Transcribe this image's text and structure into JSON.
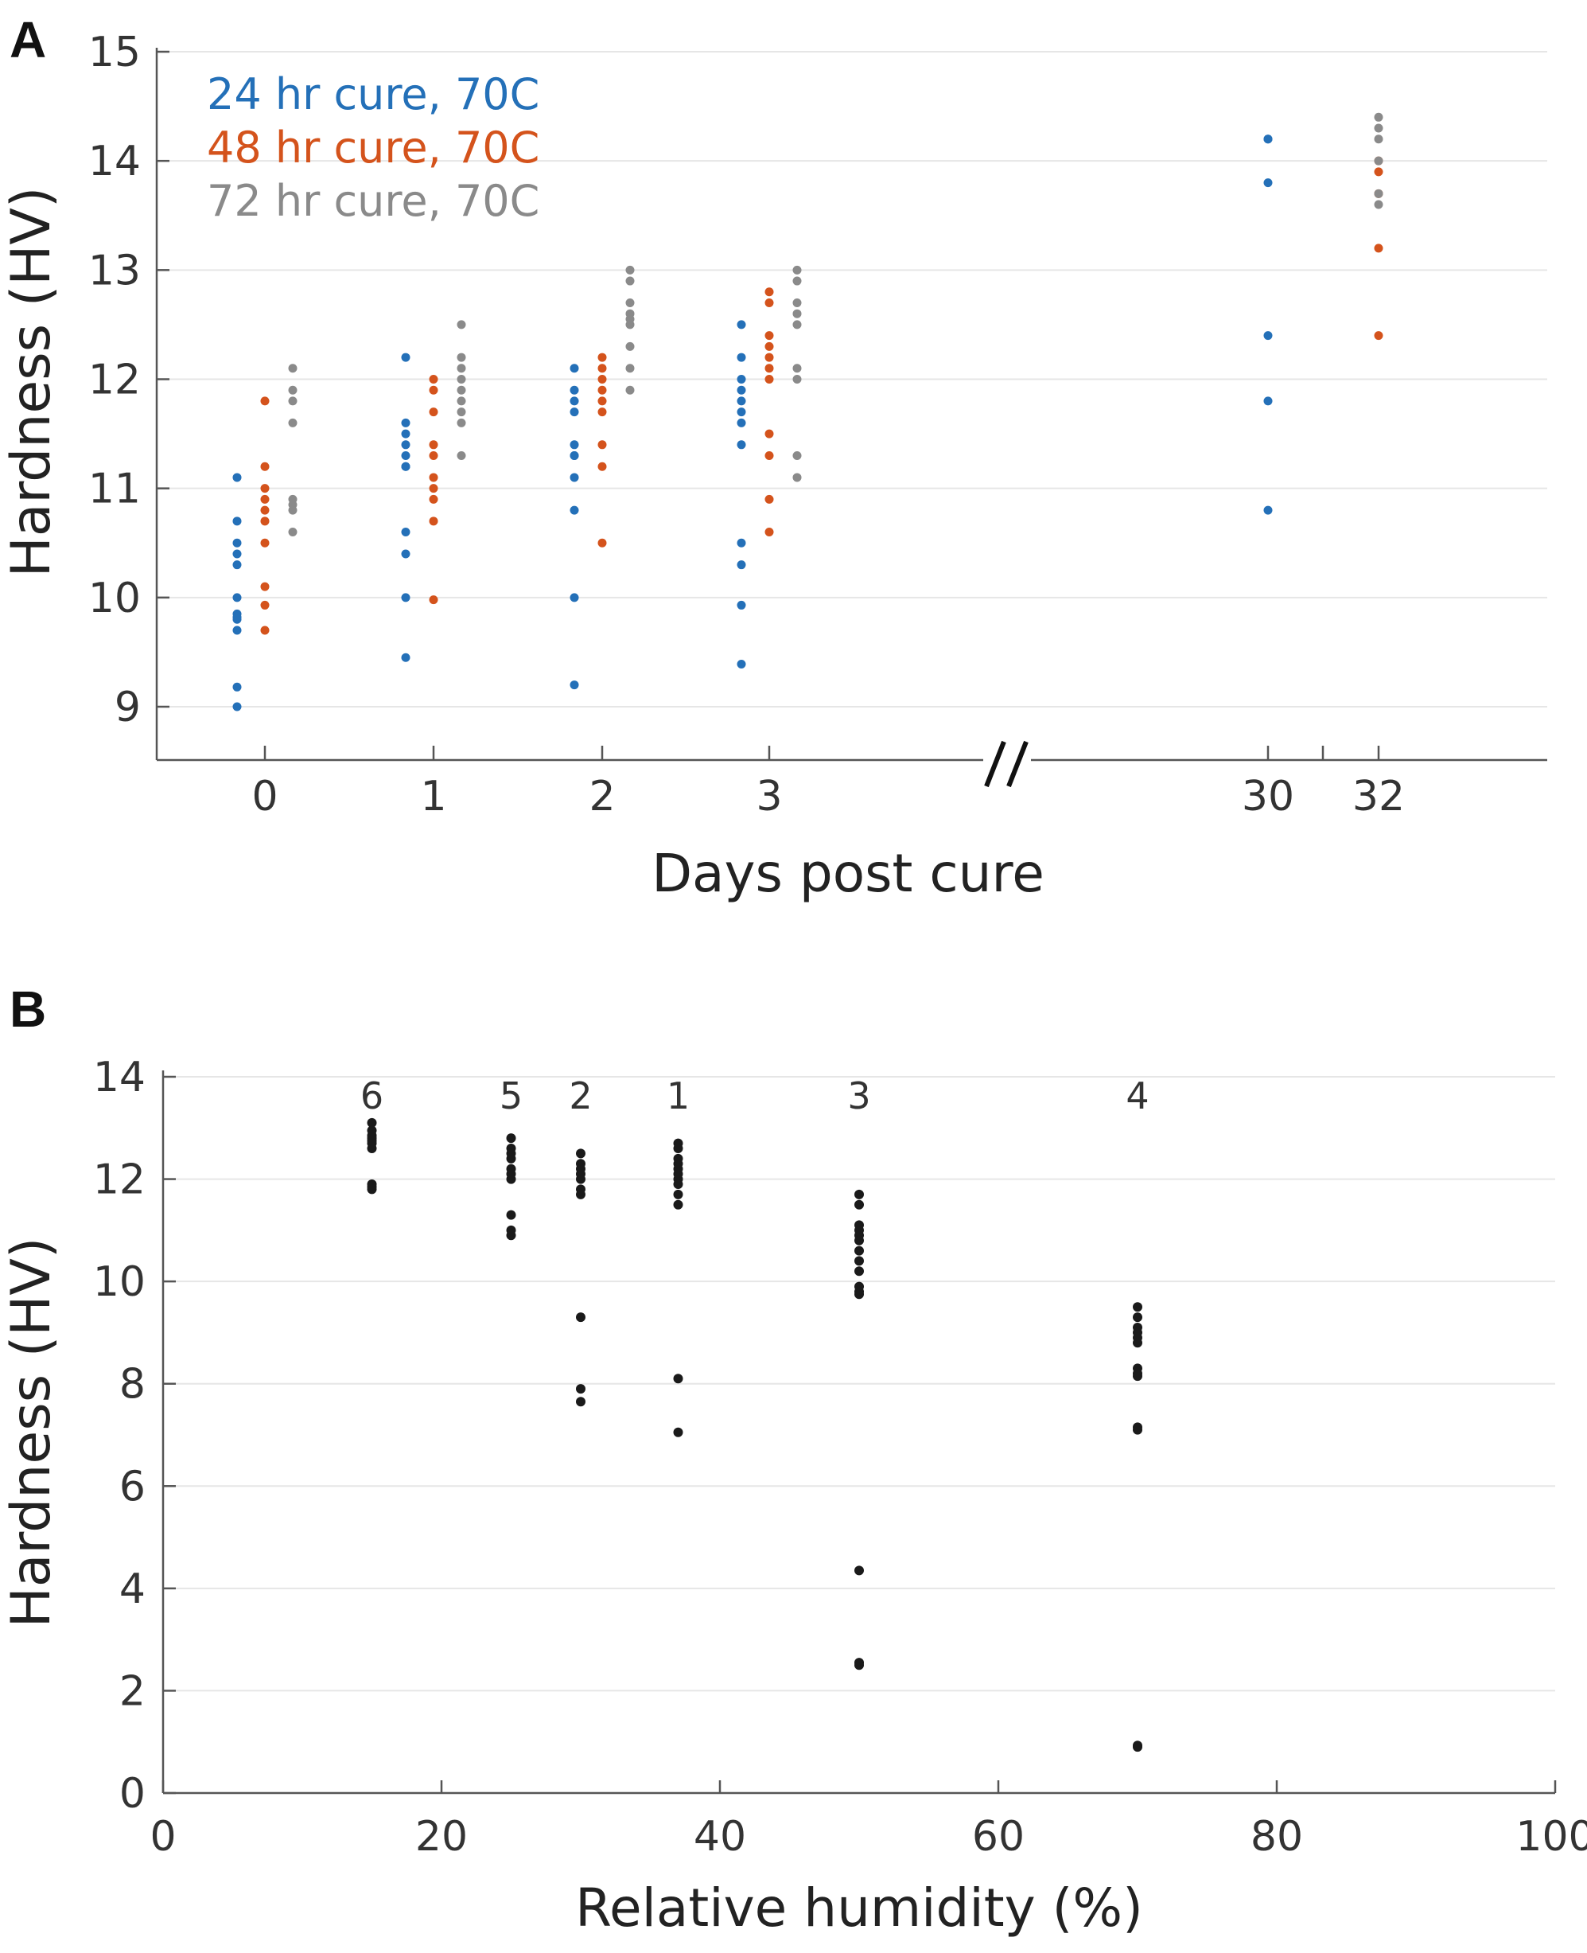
{
  "panels": [
    {
      "label": "A"
    },
    {
      "label": "B"
    }
  ],
  "chart_data": [
    {
      "id": "A",
      "type": "scatter",
      "title": "",
      "xlabel": "Days post cure",
      "ylabel": "Hardness (HV)",
      "ylim": [
        8.5,
        15
      ],
      "yticks": [
        9,
        10,
        11,
        12,
        13,
        14,
        15
      ],
      "xticks": [
        "0",
        "1",
        "2",
        "3",
        "30",
        "32"
      ],
      "axis_break": "//",
      "grid": true,
      "legend": "top-left",
      "series": [
        {
          "name": "24 hr cure, 70C",
          "color": "#2470b8",
          "groups": [
            {
              "day": "0",
              "values": [
                11.1,
                10.7,
                10.5,
                10.4,
                10.3,
                10.0,
                9.85,
                9.82,
                9.8,
                9.7,
                9.18,
                9.0
              ]
            },
            {
              "day": "1",
              "values": [
                12.2,
                11.6,
                11.5,
                11.4,
                11.3,
                11.2,
                11.2,
                10.6,
                10.4,
                10.0,
                9.45
              ]
            },
            {
              "day": "2",
              "values": [
                12.1,
                11.9,
                11.8,
                11.7,
                11.4,
                11.3,
                11.3,
                11.1,
                10.8,
                10.0,
                9.2
              ]
            },
            {
              "day": "3",
              "values": [
                12.5,
                12.2,
                12.0,
                11.9,
                11.8,
                11.7,
                11.6,
                11.4,
                10.5,
                10.3,
                9.93,
                9.39
              ]
            },
            {
              "day": "30",
              "values": [
                14.2,
                14.2,
                13.8,
                12.4,
                11.8,
                10.8
              ]
            }
          ]
        },
        {
          "name": "48 hr cure, 70C",
          "color": "#d4531c",
          "groups": [
            {
              "day": "0",
              "values": [
                11.8,
                11.2,
                11.0,
                10.9,
                10.8,
                10.7,
                10.5,
                10.1,
                9.93,
                9.7
              ]
            },
            {
              "day": "1",
              "values": [
                12.0,
                11.9,
                11.7,
                11.4,
                11.3,
                11.1,
                11.0,
                10.9,
                10.7,
                9.98
              ]
            },
            {
              "day": "2",
              "values": [
                12.2,
                12.1,
                12.0,
                11.9,
                11.8,
                11.7,
                11.4,
                11.2,
                10.5
              ]
            },
            {
              "day": "3",
              "values": [
                12.8,
                12.7,
                12.4,
                12.3,
                12.2,
                12.1,
                12.0,
                11.5,
                11.3,
                10.9,
                10.6
              ]
            },
            {
              "day": "32",
              "values": [
                14.0,
                13.9,
                13.7,
                13.2,
                12.4
              ]
            }
          ]
        },
        {
          "name": "72 hr cure, 70C",
          "color": "#8a8a8a",
          "groups": [
            {
              "day": "0",
              "values": [
                12.1,
                11.9,
                11.8,
                11.6,
                10.9,
                10.85,
                10.8,
                10.6
              ]
            },
            {
              "day": "1",
              "values": [
                12.5,
                12.2,
                12.1,
                12.0,
                11.9,
                11.8,
                11.7,
                11.6,
                11.3
              ]
            },
            {
              "day": "2",
              "values": [
                13.0,
                12.9,
                12.7,
                12.6,
                12.55,
                12.5,
                12.3,
                12.1,
                11.9
              ]
            },
            {
              "day": "3",
              "values": [
                13.0,
                12.9,
                12.7,
                12.6,
                12.5,
                12.1,
                12.0,
                11.3,
                11.1
              ]
            },
            {
              "day": "32",
              "values": [
                14.4,
                14.3,
                14.2,
                14.0,
                13.7,
                13.6
              ]
            }
          ]
        }
      ]
    },
    {
      "id": "B",
      "type": "scatter",
      "title": "",
      "xlabel": "Relative humidity (%)",
      "ylabel": "Hardness (HV)",
      "xlim": [
        0,
        100
      ],
      "ylim": [
        0,
        14
      ],
      "xticks": [
        0,
        20,
        40,
        60,
        80,
        100
      ],
      "yticks": [
        0,
        2,
        4,
        6,
        8,
        10,
        12,
        14
      ],
      "grid": true,
      "color": "#1a1a1a",
      "groups": [
        {
          "label": "6",
          "x": 15,
          "values": [
            13.1,
            12.95,
            12.85,
            12.8,
            12.75,
            12.7,
            12.6,
            11.9,
            11.85,
            11.8
          ]
        },
        {
          "label": "5",
          "x": 25,
          "values": [
            12.8,
            12.6,
            12.5,
            12.4,
            12.2,
            12.1,
            12.0,
            11.3,
            11.0,
            10.9
          ]
        },
        {
          "label": "2",
          "x": 30,
          "values": [
            12.5,
            12.3,
            12.2,
            12.1,
            12.0,
            11.8,
            11.7,
            9.3,
            7.9,
            7.65
          ]
        },
        {
          "label": "1",
          "x": 37,
          "values": [
            12.7,
            12.6,
            12.4,
            12.3,
            12.2,
            12.1,
            12.0,
            11.9,
            11.7,
            11.5,
            8.1,
            7.05
          ]
        },
        {
          "label": "3",
          "x": 50,
          "values": [
            11.7,
            11.5,
            11.1,
            11.0,
            10.9,
            10.8,
            10.6,
            10.4,
            10.2,
            9.9,
            9.8,
            9.75,
            4.35,
            2.55,
            2.5
          ]
        },
        {
          "label": "4",
          "x": 70,
          "values": [
            9.5,
            9.3,
            9.1,
            9.0,
            8.9,
            8.8,
            8.3,
            8.2,
            8.15,
            7.15,
            7.1,
            0.93,
            0.9
          ]
        }
      ]
    }
  ]
}
